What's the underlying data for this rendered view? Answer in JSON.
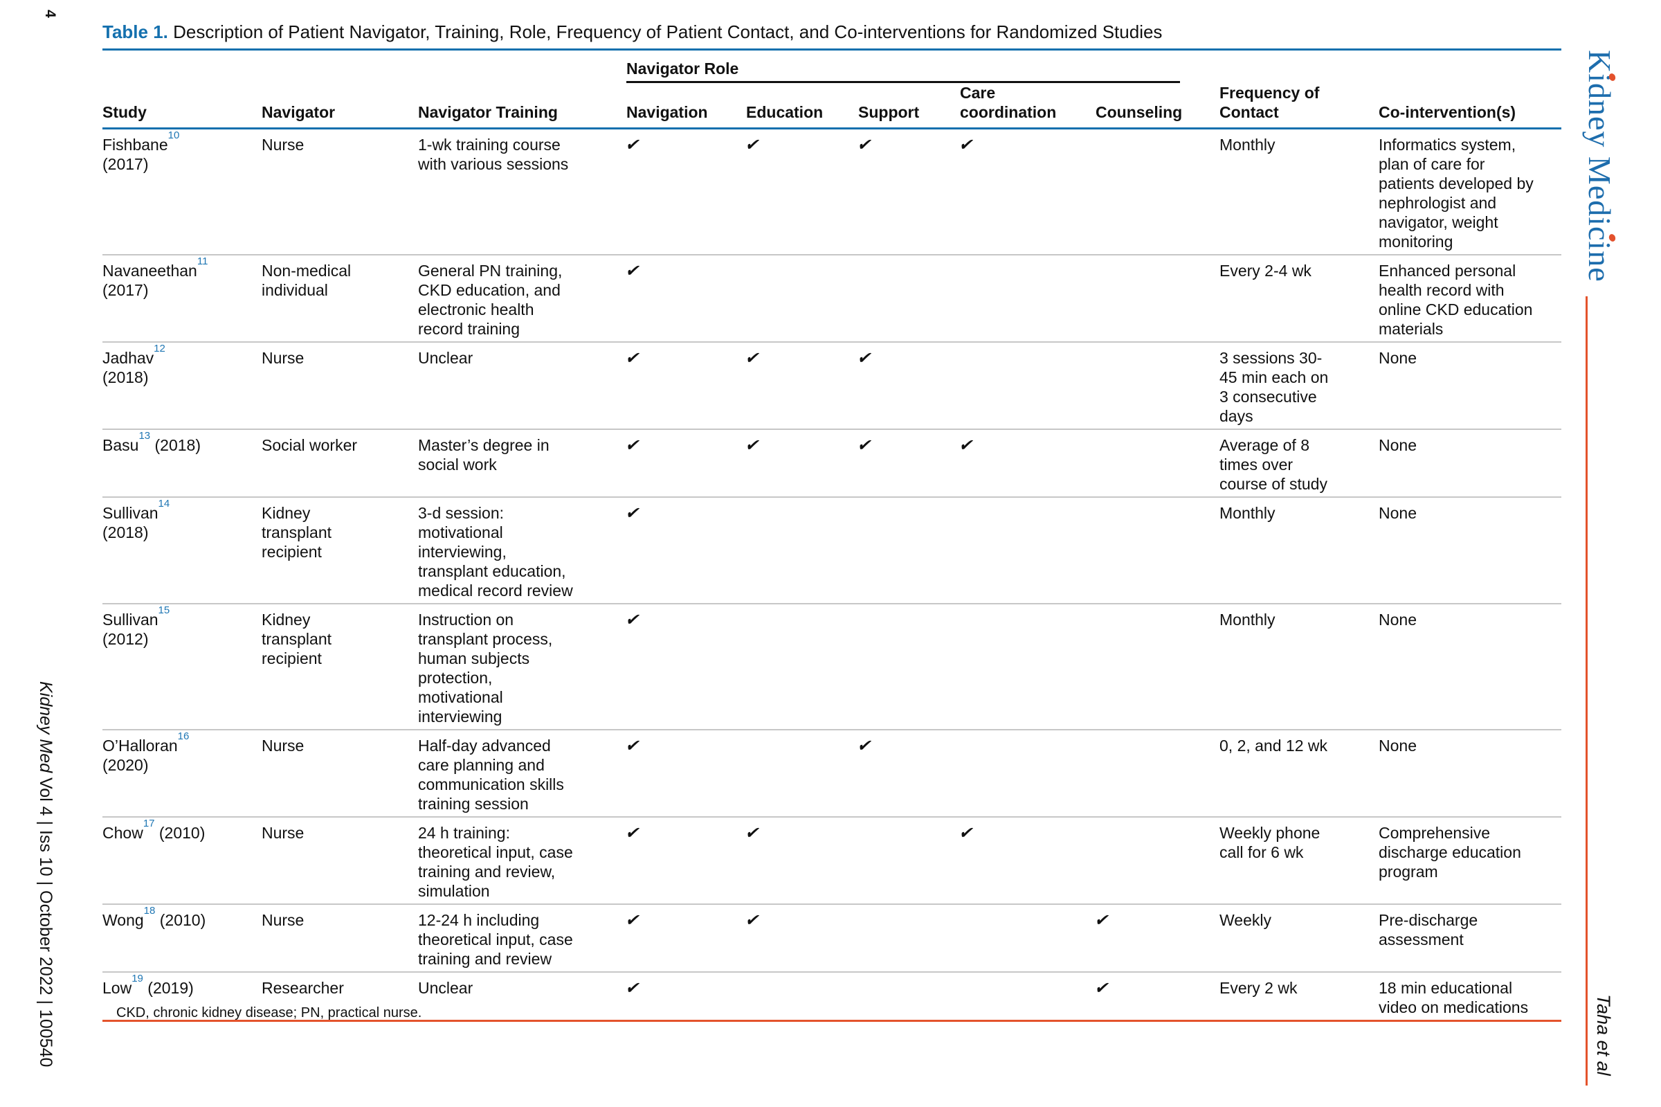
{
  "page": {
    "number": "4"
  },
  "title": {
    "label": "Table 1.",
    "text": " Description of Patient Navigator, Training, Role, Frequency of Patient Contact, and Co-interventions for Randomized Studies"
  },
  "journal": {
    "logo_text": "Kidney Medicine",
    "footer_italic": "Kidney Med",
    "footer_rest": " Vol 4 | Iss 10 | October 2022 | 100540",
    "authors": "Taha et al"
  },
  "colors": {
    "accent_blue": "#1470ae",
    "logo_blue": "#1d6dad",
    "accent_orange": "#e4532c",
    "ref_blue": "#2077b4",
    "row_divider_gray": "#c7c7c7"
  },
  "table": {
    "spanner": "Navigator Role",
    "check_glyph": "✔",
    "columns": [
      "Study",
      "Navigator",
      "Navigator Training",
      "Navigation",
      "Education",
      "Support",
      "Care\ncoordination",
      "Counseling",
      "Frequency of\nContact",
      "Co-intervention(s)"
    ],
    "rows": [
      {
        "study": {
          "name": "Fishbane",
          "ref": "10",
          "year": "(2017)",
          "year_newline": true
        },
        "navigator": "Nurse",
        "training": "1-wk training course\nwith various sessions",
        "roles": [
          true,
          true,
          true,
          true,
          false
        ],
        "frequency": "Monthly",
        "cointervention": "Informatics system,\nplan of care for\npatients developed by\nnephrologist and\nnavigator, weight\nmonitoring"
      },
      {
        "study": {
          "name": "Navaneethan",
          "ref": "11",
          "year": "(2017)",
          "year_newline": true
        },
        "navigator": "Non-medical\nindividual",
        "training": "General PN training,\nCKD education, and\nelectronic health\nrecord training",
        "roles": [
          true,
          false,
          false,
          false,
          false
        ],
        "frequency": "Every 2-4 wk",
        "cointervention": "Enhanced personal\nhealth record with\nonline CKD education\nmaterials"
      },
      {
        "study": {
          "name": "Jadhav",
          "ref": "12",
          "year": "(2018)",
          "year_newline": true
        },
        "navigator": "Nurse",
        "training": "Unclear",
        "roles": [
          true,
          true,
          true,
          false,
          false
        ],
        "frequency": "3 sessions 30-\n45 min each on\n3 consecutive\ndays",
        "cointervention": "None"
      },
      {
        "study": {
          "name": "Basu",
          "ref": "13",
          "year": "(2018)",
          "year_newline": false
        },
        "navigator": "Social worker",
        "training": "Master’s degree in\nsocial work",
        "roles": [
          true,
          true,
          true,
          true,
          false
        ],
        "frequency": "Average of 8\ntimes over\ncourse of study",
        "cointervention": "None"
      },
      {
        "study": {
          "name": "Sullivan",
          "ref": "14",
          "year": "(2018)",
          "year_newline": true
        },
        "navigator": "Kidney\ntransplant\nrecipient",
        "training": "3-d session:\nmotivational\ninterviewing,\ntransplant education,\nmedical record review",
        "roles": [
          true,
          false,
          false,
          false,
          false
        ],
        "frequency": "Monthly",
        "cointervention": "None"
      },
      {
        "study": {
          "name": "Sullivan",
          "ref": "15",
          "year": "(2012)",
          "year_newline": true
        },
        "navigator": "Kidney\ntransplant\nrecipient",
        "training": "Instruction on\ntransplant process,\nhuman subjects\nprotection,\nmotivational\ninterviewing",
        "roles": [
          true,
          false,
          false,
          false,
          false
        ],
        "frequency": "Monthly",
        "cointervention": "None"
      },
      {
        "study": {
          "name": "O’Halloran",
          "ref": "16",
          "year": "(2020)",
          "year_newline": true
        },
        "navigator": "Nurse",
        "training": "Half-day advanced\ncare planning and\ncommunication skills\ntraining session",
        "roles": [
          true,
          false,
          true,
          false,
          false
        ],
        "frequency": "0, 2, and 12 wk",
        "cointervention": "None"
      },
      {
        "study": {
          "name": "Chow",
          "ref": "17",
          "year": "(2010)",
          "year_newline": false
        },
        "navigator": "Nurse",
        "training": "24 h training:\ntheoretical input, case\ntraining and review,\nsimulation",
        "roles": [
          true,
          true,
          false,
          true,
          false
        ],
        "frequency": "Weekly phone\ncall for 6 wk",
        "cointervention": "Comprehensive\ndischarge education\nprogram"
      },
      {
        "study": {
          "name": "Wong",
          "ref": "18",
          "year": "(2010)",
          "year_newline": false
        },
        "navigator": "Nurse",
        "training": "12-24 h including\ntheoretical input, case\ntraining and review",
        "roles": [
          true,
          true,
          false,
          false,
          true
        ],
        "frequency": "Weekly",
        "cointervention": "Pre-discharge\nassessment"
      },
      {
        "study": {
          "name": "Low",
          "ref": "19",
          "year": "(2019)",
          "year_newline": false
        },
        "navigator": "Researcher",
        "training": "Unclear",
        "roles": [
          true,
          false,
          false,
          false,
          true
        ],
        "frequency": "Every 2 wk",
        "cointervention": "18 min educational\nvideo on medications"
      }
    ],
    "footnote": "CKD, chronic kidney disease; PN, practical nurse."
  }
}
